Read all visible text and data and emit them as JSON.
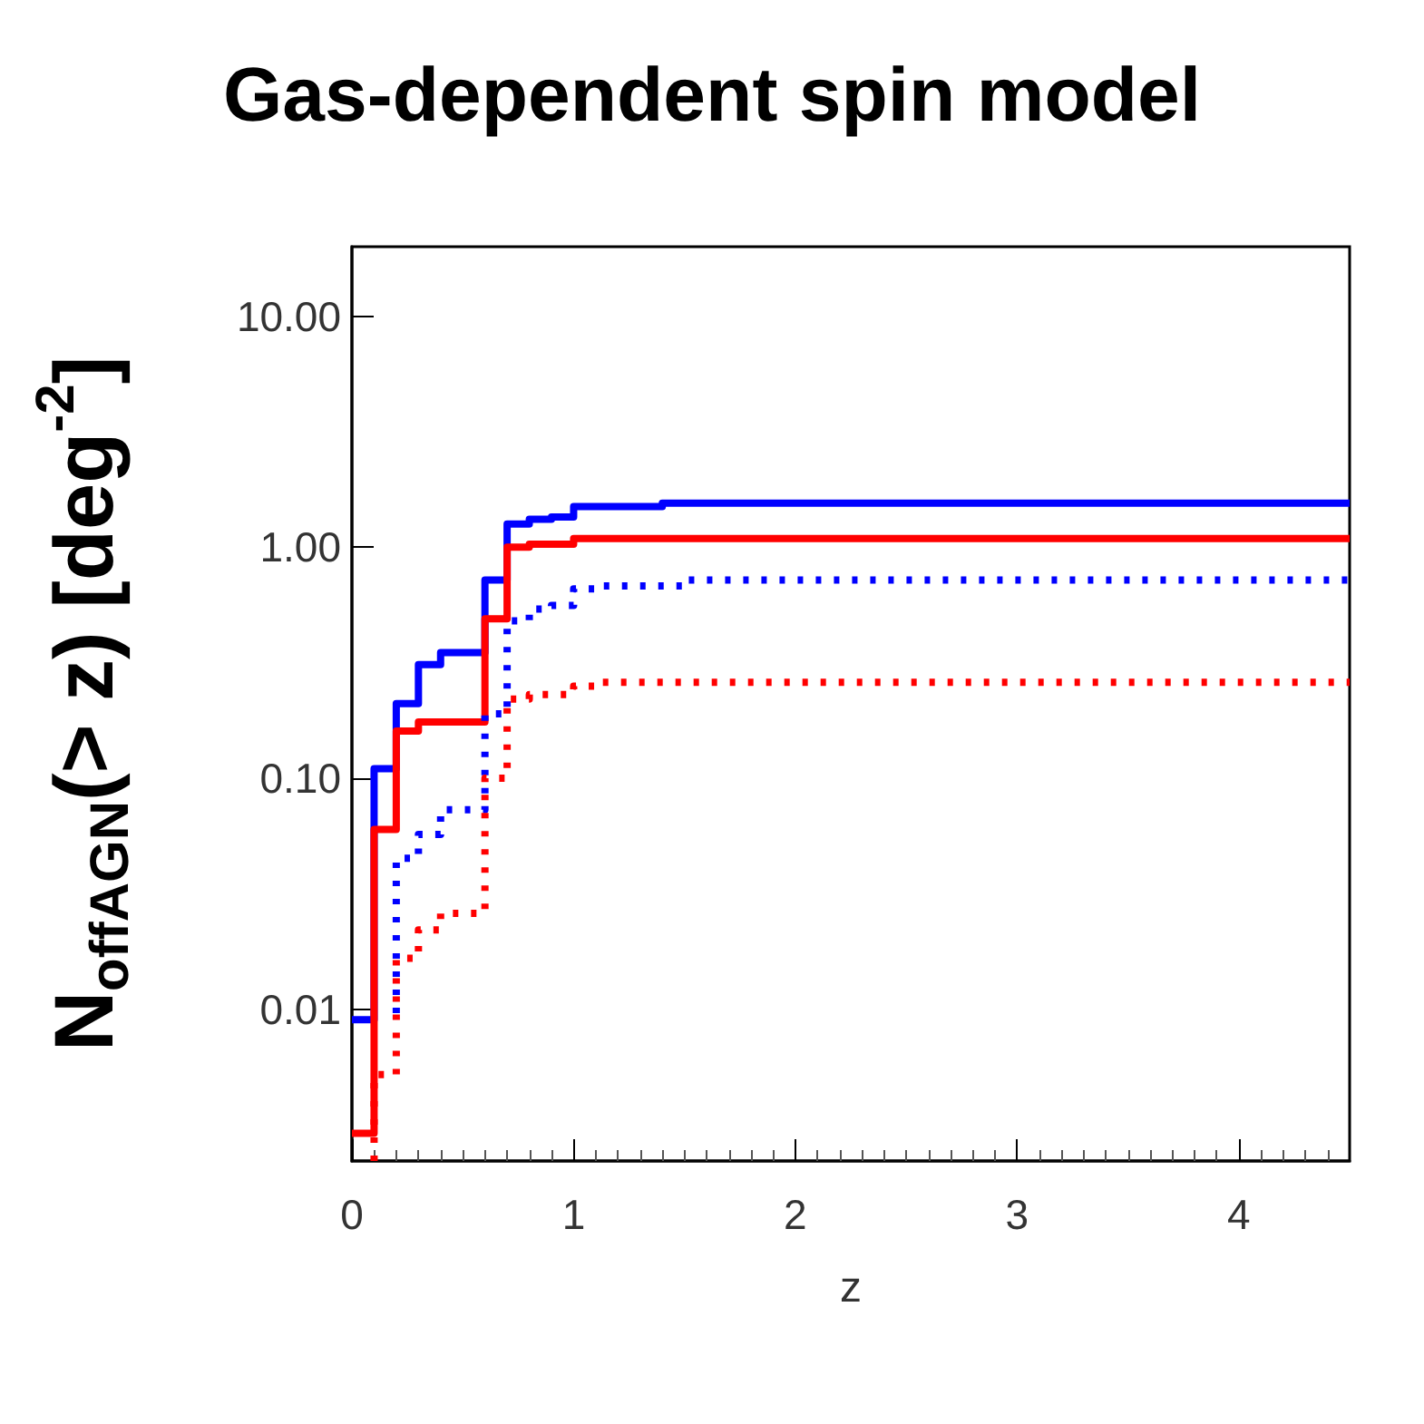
{
  "chart_data": {
    "type": "step",
    "title": "Gas-dependent spin model",
    "xlabel": "z",
    "ylabel": "N$_{offAGN}$(> z) [deg$^{-2}$]",
    "log": "y",
    "grid": false,
    "xlim": [
      0,
      4.5
    ],
    "xticks": [
      0,
      1,
      2,
      3,
      4
    ],
    "ylim": [
      0.0022,
      20
    ],
    "yticks": [
      {
        "value": 0.01,
        "label": "0.01"
      },
      {
        "value": 0.1,
        "label": "0.10"
      },
      {
        "value": 1,
        "label": "1.00"
      },
      {
        "value": 10,
        "label": "10.00"
      }
    ],
    "series": [
      {
        "color": "#0000ff",
        "line_style": "solid",
        "x": [
          0,
          0.1,
          0.2,
          0.3,
          0.4,
          0.6,
          0.7,
          0.8,
          0.9,
          1.0,
          1.4,
          4.5
        ],
        "values": [
          0.009,
          0.11,
          0.21,
          0.31,
          0.35,
          0.72,
          1.26,
          1.32,
          1.35,
          1.5,
          1.55,
          1.55
        ]
      },
      {
        "color": "#ff0000",
        "line_style": "solid",
        "x": [
          0,
          0.1,
          0.2,
          0.3,
          0.6,
          0.7,
          0.8,
          1.0,
          4.5
        ],
        "values": [
          0.0029,
          0.06,
          0.16,
          0.175,
          0.49,
          1.0,
          1.03,
          1.09,
          1.09
        ]
      },
      {
        "color": "#0000ff",
        "line_style": "dotted",
        "x": [
          0.2,
          0.2,
          0.3,
          0.4,
          0.6,
          0.7,
          0.8,
          0.9,
          1.0,
          1.1,
          1.5,
          4.5
        ],
        "values": [
          0.0096,
          0.045,
          0.057,
          0.073,
          0.19,
          0.48,
          0.54,
          0.56,
          0.66,
          0.68,
          0.72,
          0.72
        ]
      },
      {
        "color": "#ff0000",
        "line_style": "dotted",
        "x": [
          0.1,
          0.1,
          0.2,
          0.3,
          0.4,
          0.6,
          0.7,
          0.8,
          1.0,
          1.1,
          4.5
        ],
        "values": [
          0.0022,
          0.0052,
          0.0166,
          0.022,
          0.026,
          0.1,
          0.22,
          0.23,
          0.25,
          0.26,
          0.26
        ]
      }
    ]
  }
}
